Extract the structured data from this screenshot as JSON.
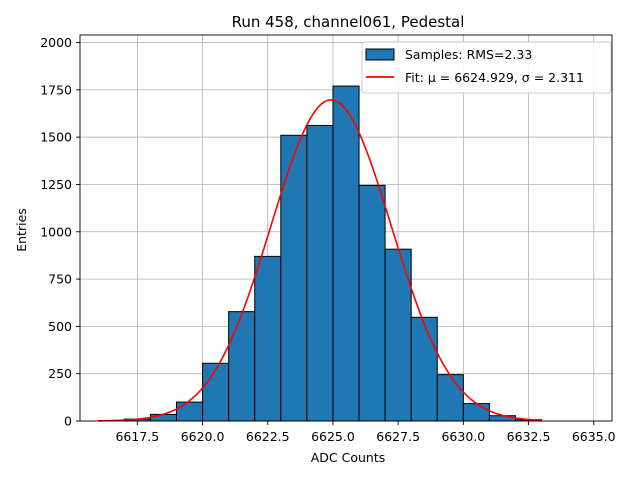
{
  "chart_data": {
    "type": "histogram",
    "title": "Run 458, channel061, Pedestal",
    "xlabel": "ADC Counts",
    "ylabel": "Entries",
    "xlim": [
      6615.3,
      6635.7
    ],
    "ylim": [
      0,
      2040
    ],
    "grid": true,
    "x_ticks": [
      6617.5,
      6620.0,
      6622.5,
      6625.0,
      6627.5,
      6630.0,
      6632.5,
      6635.0
    ],
    "x_tick_labels": [
      "6617.5",
      "6620.0",
      "6622.5",
      "6625.0",
      "6627.5",
      "6630.0",
      "6632.5",
      "6635.0"
    ],
    "y_ticks": [
      0,
      250,
      500,
      750,
      1000,
      1250,
      1500,
      1750,
      2000
    ],
    "y_tick_labels": [
      "0",
      "250",
      "500",
      "750",
      "1000",
      "1250",
      "1500",
      "1750",
      "2000"
    ],
    "bins": [
      {
        "start": 6617.0,
        "end": 6618.0,
        "count": 10
      },
      {
        "start": 6618.0,
        "end": 6619.0,
        "count": 35
      },
      {
        "start": 6619.0,
        "end": 6620.0,
        "count": 100
      },
      {
        "start": 6620.0,
        "end": 6621.0,
        "count": 305
      },
      {
        "start": 6621.0,
        "end": 6622.0,
        "count": 578
      },
      {
        "start": 6622.0,
        "end": 6623.0,
        "count": 870
      },
      {
        "start": 6623.0,
        "end": 6624.0,
        "count": 1510
      },
      {
        "start": 6624.0,
        "end": 6625.0,
        "count": 1562
      },
      {
        "start": 6625.0,
        "end": 6626.0,
        "count": 1770
      },
      {
        "start": 6626.0,
        "end": 6627.0,
        "count": 1245
      },
      {
        "start": 6627.0,
        "end": 6628.0,
        "count": 908
      },
      {
        "start": 6628.0,
        "end": 6629.0,
        "count": 548
      },
      {
        "start": 6629.0,
        "end": 6630.0,
        "count": 245
      },
      {
        "start": 6630.0,
        "end": 6631.0,
        "count": 92
      },
      {
        "start": 6631.0,
        "end": 6632.0,
        "count": 28
      },
      {
        "start": 6632.0,
        "end": 6633.0,
        "count": 7
      }
    ],
    "fit": {
      "name": "Fit",
      "mu": 6624.929,
      "sigma": 2.311,
      "amplitude": 1697,
      "x_range": [
        6616.0,
        6633.0
      ],
      "color": "#ff0000"
    },
    "legend": [
      {
        "label": "Samples: RMS=2.33",
        "kind": "patch",
        "color": "#1f77b4"
      },
      {
        "label": "Fit: μ = 6624.929, σ = 2.311",
        "kind": "line",
        "color": "#ff0000"
      }
    ],
    "legend_position": "top-right",
    "bar_color": "#1f77b4"
  }
}
